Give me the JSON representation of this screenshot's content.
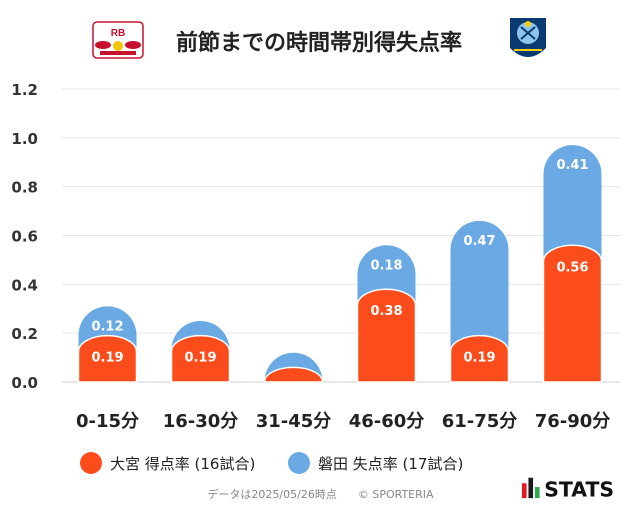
{
  "chart_data": {
    "type": "bar",
    "title": "前節までの時間帯別得失点率",
    "categories": [
      "0-15分",
      "16-30分",
      "31-45分",
      "46-60分",
      "61-75分",
      "76-90分"
    ],
    "series": [
      {
        "name": "大宮 得点率 (16試合)",
        "color": "#fc4c1c",
        "values": [
          0.19,
          0.19,
          0.06,
          0.38,
          0.19,
          0.56
        ],
        "labels": [
          "0.19",
          "0.19",
          "",
          "0.38",
          "0.19",
          "0.56"
        ]
      },
      {
        "name": "磐田 失点率 (17試合)",
        "color": "#6aa9e4",
        "values": [
          0.12,
          0.06,
          0.06,
          0.18,
          0.47,
          0.41
        ],
        "labels": [
          "0.12",
          "",
          "",
          "0.18",
          "0.47",
          "0.41"
        ]
      }
    ],
    "stacked": true,
    "ylim": [
      0,
      1.2
    ],
    "yticks": [
      "0.0",
      "0.2",
      "0.4",
      "0.6",
      "0.8",
      "1.0",
      "1.2"
    ],
    "grid": true,
    "legend_position": "bottom"
  },
  "footer": {
    "note": "データは2025/05/26時点",
    "copyright": "© SPORTERIA"
  },
  "brand": {
    "name": "STATS"
  },
  "logos": {
    "home_text": "RB",
    "home_name": "RB OMIYA ARDIJA",
    "away_name": "JUBILO IWATA"
  }
}
